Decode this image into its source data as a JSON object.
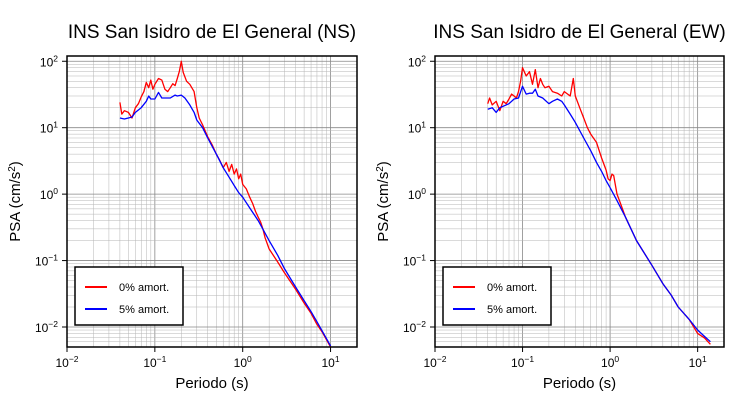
{
  "chart_data": [
    {
      "type": "line",
      "title": "INS San Isidro de El General (NS)",
      "xlabel": "Periodo (s)",
      "ylabel_main": "PSA (cm/s",
      "ylabel_sup": "2",
      "ylabel_tail": ")",
      "xscale": "log",
      "yscale": "log",
      "xlim": [
        0.01,
        20
      ],
      "ylim": [
        0.005,
        120
      ],
      "grid": true,
      "legend_position": "bottom-left",
      "x_ticks": [
        {
          "base": "10",
          "exp": "−2"
        },
        {
          "base": "10",
          "exp": "−1"
        },
        {
          "base": "10",
          "exp": "0"
        },
        {
          "base": "10",
          "exp": "1"
        }
      ],
      "y_ticks": [
        {
          "base": "10",
          "exp": "−2"
        },
        {
          "base": "10",
          "exp": "−1"
        },
        {
          "base": "10",
          "exp": "0"
        },
        {
          "base": "10",
          "exp": "1"
        },
        {
          "base": "10",
          "exp": "2"
        }
      ],
      "series": [
        {
          "name": "0% amort.",
          "color": "#ff0000",
          "points": [
            [
              0.04,
              24
            ],
            [
              0.042,
              16
            ],
            [
              0.045,
              18
            ],
            [
              0.05,
              17
            ],
            [
              0.055,
              14
            ],
            [
              0.06,
              20
            ],
            [
              0.065,
              23
            ],
            [
              0.07,
              29
            ],
            [
              0.075,
              35
            ],
            [
              0.08,
              48
            ],
            [
              0.085,
              40
            ],
            [
              0.09,
              52
            ],
            [
              0.095,
              38
            ],
            [
              0.1,
              45
            ],
            [
              0.11,
              55
            ],
            [
              0.12,
              52
            ],
            [
              0.13,
              38
            ],
            [
              0.14,
              35
            ],
            [
              0.15,
              40
            ],
            [
              0.16,
              46
            ],
            [
              0.17,
              43
            ],
            [
              0.18,
              55
            ],
            [
              0.19,
              70
            ],
            [
              0.2,
              100
            ],
            [
              0.21,
              68
            ],
            [
              0.23,
              50
            ],
            [
              0.25,
              45
            ],
            [
              0.28,
              35
            ],
            [
              0.3,
              20
            ],
            [
              0.32,
              14
            ],
            [
              0.35,
              11
            ],
            [
              0.4,
              7.3
            ],
            [
              0.45,
              5.5
            ],
            [
              0.5,
              4.0
            ],
            [
              0.55,
              3.2
            ],
            [
              0.6,
              2.5
            ],
            [
              0.65,
              3.0
            ],
            [
              0.7,
              2.2
            ],
            [
              0.75,
              2.8
            ],
            [
              0.8,
              2.0
            ],
            [
              0.85,
              2.4
            ],
            [
              0.9,
              1.7
            ],
            [
              0.95,
              2.0
            ],
            [
              1.0,
              1.4
            ],
            [
              1.1,
              1.2
            ],
            [
              1.2,
              0.9
            ],
            [
              1.3,
              0.72
            ],
            [
              1.4,
              0.55
            ],
            [
              1.5,
              0.45
            ],
            [
              1.6,
              0.38
            ],
            [
              1.7,
              0.3
            ],
            [
              1.8,
              0.22
            ],
            [
              2.0,
              0.15
            ],
            [
              2.5,
              0.095
            ],
            [
              3.0,
              0.065
            ],
            [
              4.0,
              0.037
            ],
            [
              5.0,
              0.023
            ],
            [
              6.0,
              0.016
            ],
            [
              7.0,
              0.011
            ],
            [
              8.0,
              0.0085
            ],
            [
              10.0,
              0.005
            ]
          ]
        },
        {
          "name": "5% amort.",
          "color": "#0000ff",
          "points": [
            [
              0.04,
              14
            ],
            [
              0.045,
              13.5
            ],
            [
              0.05,
              14
            ],
            [
              0.055,
              14.5
            ],
            [
              0.06,
              17
            ],
            [
              0.07,
              20
            ],
            [
              0.08,
              25
            ],
            [
              0.085,
              30
            ],
            [
              0.09,
              27
            ],
            [
              0.1,
              27
            ],
            [
              0.11,
              34
            ],
            [
              0.12,
              28
            ],
            [
              0.13,
              28
            ],
            [
              0.15,
              28
            ],
            [
              0.17,
              31
            ],
            [
              0.18,
              30
            ],
            [
              0.2,
              31
            ],
            [
              0.22,
              28
            ],
            [
              0.25,
              22
            ],
            [
              0.28,
              17
            ],
            [
              0.3,
              13
            ],
            [
              0.35,
              10
            ],
            [
              0.4,
              7.0
            ],
            [
              0.5,
              4.0
            ],
            [
              0.6,
              2.5
            ],
            [
              0.7,
              1.8
            ],
            [
              0.8,
              1.35
            ],
            [
              0.9,
              1.05
            ],
            [
              1.0,
              0.9
            ],
            [
              1.2,
              0.62
            ],
            [
              1.5,
              0.4
            ],
            [
              2.0,
              0.2
            ],
            [
              2.5,
              0.12
            ],
            [
              3.0,
              0.075
            ],
            [
              4.0,
              0.04
            ],
            [
              5.0,
              0.025
            ],
            [
              6.0,
              0.017
            ],
            [
              7.0,
              0.012
            ],
            [
              8.0,
              0.0088
            ],
            [
              10.0,
              0.0052
            ]
          ]
        }
      ]
    },
    {
      "type": "line",
      "title": "INS San Isidro de El General (EW)",
      "xlabel": "Periodo (s)",
      "ylabel_main": "PSA (cm/s",
      "ylabel_sup": "2",
      "ylabel_tail": ")",
      "xscale": "log",
      "yscale": "log",
      "xlim": [
        0.01,
        20
      ],
      "ylim": [
        0.005,
        120
      ],
      "grid": true,
      "legend_position": "bottom-left",
      "x_ticks": [
        {
          "base": "10",
          "exp": "−2"
        },
        {
          "base": "10",
          "exp": "−1"
        },
        {
          "base": "10",
          "exp": "0"
        },
        {
          "base": "10",
          "exp": "1"
        }
      ],
      "y_ticks": [
        {
          "base": "10",
          "exp": "−2"
        },
        {
          "base": "10",
          "exp": "−1"
        },
        {
          "base": "10",
          "exp": "0"
        },
        {
          "base": "10",
          "exp": "1"
        },
        {
          "base": "10",
          "exp": "2"
        }
      ],
      "series": [
        {
          "name": "0% amort.",
          "color": "#ff0000",
          "points": [
            [
              0.04,
              23
            ],
            [
              0.042,
              28
            ],
            [
              0.045,
              22
            ],
            [
              0.05,
              25
            ],
            [
              0.055,
              18
            ],
            [
              0.06,
              25
            ],
            [
              0.065,
              23
            ],
            [
              0.07,
              27
            ],
            [
              0.075,
              32
            ],
            [
              0.08,
              30
            ],
            [
              0.085,
              28
            ],
            [
              0.09,
              35
            ],
            [
              0.095,
              50
            ],
            [
              0.1,
              80
            ],
            [
              0.11,
              60
            ],
            [
              0.12,
              70
            ],
            [
              0.13,
              45
            ],
            [
              0.14,
              75
            ],
            [
              0.15,
              40
            ],
            [
              0.16,
              55
            ],
            [
              0.17,
              45
            ],
            [
              0.18,
              40
            ],
            [
              0.2,
              42
            ],
            [
              0.22,
              35
            ],
            [
              0.25,
              33
            ],
            [
              0.28,
              30
            ],
            [
              0.3,
              35
            ],
            [
              0.35,
              30
            ],
            [
              0.38,
              55
            ],
            [
              0.4,
              30
            ],
            [
              0.45,
              20
            ],
            [
              0.5,
              14
            ],
            [
              0.55,
              10
            ],
            [
              0.6,
              8.0
            ],
            [
              0.7,
              6.0
            ],
            [
              0.8,
              3.5
            ],
            [
              0.9,
              2.3
            ],
            [
              0.95,
              1.7
            ],
            [
              1.0,
              1.6
            ],
            [
              1.05,
              2.0
            ],
            [
              1.1,
              1.9
            ],
            [
              1.2,
              1.0
            ],
            [
              1.3,
              0.75
            ],
            [
              1.5,
              0.45
            ],
            [
              2.0,
              0.2
            ],
            [
              3.0,
              0.085
            ],
            [
              4.0,
              0.045
            ],
            [
              5.0,
              0.03
            ],
            [
              6.0,
              0.02
            ],
            [
              8.0,
              0.013
            ],
            [
              10.0,
              0.008
            ],
            [
              12.0,
              0.0068
            ],
            [
              14.0,
              0.0055
            ]
          ]
        },
        {
          "name": "5% amort.",
          "color": "#0000ff",
          "points": [
            [
              0.04,
              19
            ],
            [
              0.045,
              20
            ],
            [
              0.05,
              17
            ],
            [
              0.055,
              20
            ],
            [
              0.06,
              21
            ],
            [
              0.07,
              23
            ],
            [
              0.08,
              27
            ],
            [
              0.09,
              28
            ],
            [
              0.1,
              42
            ],
            [
              0.11,
              32
            ],
            [
              0.12,
              33
            ],
            [
              0.13,
              33
            ],
            [
              0.14,
              38
            ],
            [
              0.15,
              30
            ],
            [
              0.17,
              28
            ],
            [
              0.2,
              23
            ],
            [
              0.22,
              25
            ],
            [
              0.25,
              27
            ],
            [
              0.28,
              25
            ],
            [
              0.3,
              22
            ],
            [
              0.35,
              16
            ],
            [
              0.4,
              12
            ],
            [
              0.5,
              7.0
            ],
            [
              0.6,
              4.5
            ],
            [
              0.7,
              3.0
            ],
            [
              0.8,
              2.2
            ],
            [
              0.9,
              1.6
            ],
            [
              1.0,
              1.25
            ],
            [
              1.2,
              0.8
            ],
            [
              1.5,
              0.45
            ],
            [
              2.0,
              0.2
            ],
            [
              3.0,
              0.085
            ],
            [
              4.0,
              0.045
            ],
            [
              5.0,
              0.03
            ],
            [
              6.0,
              0.02
            ],
            [
              8.0,
              0.013
            ],
            [
              10.0,
              0.009
            ],
            [
              12.0,
              0.0072
            ],
            [
              14.0,
              0.006
            ]
          ]
        }
      ]
    }
  ]
}
